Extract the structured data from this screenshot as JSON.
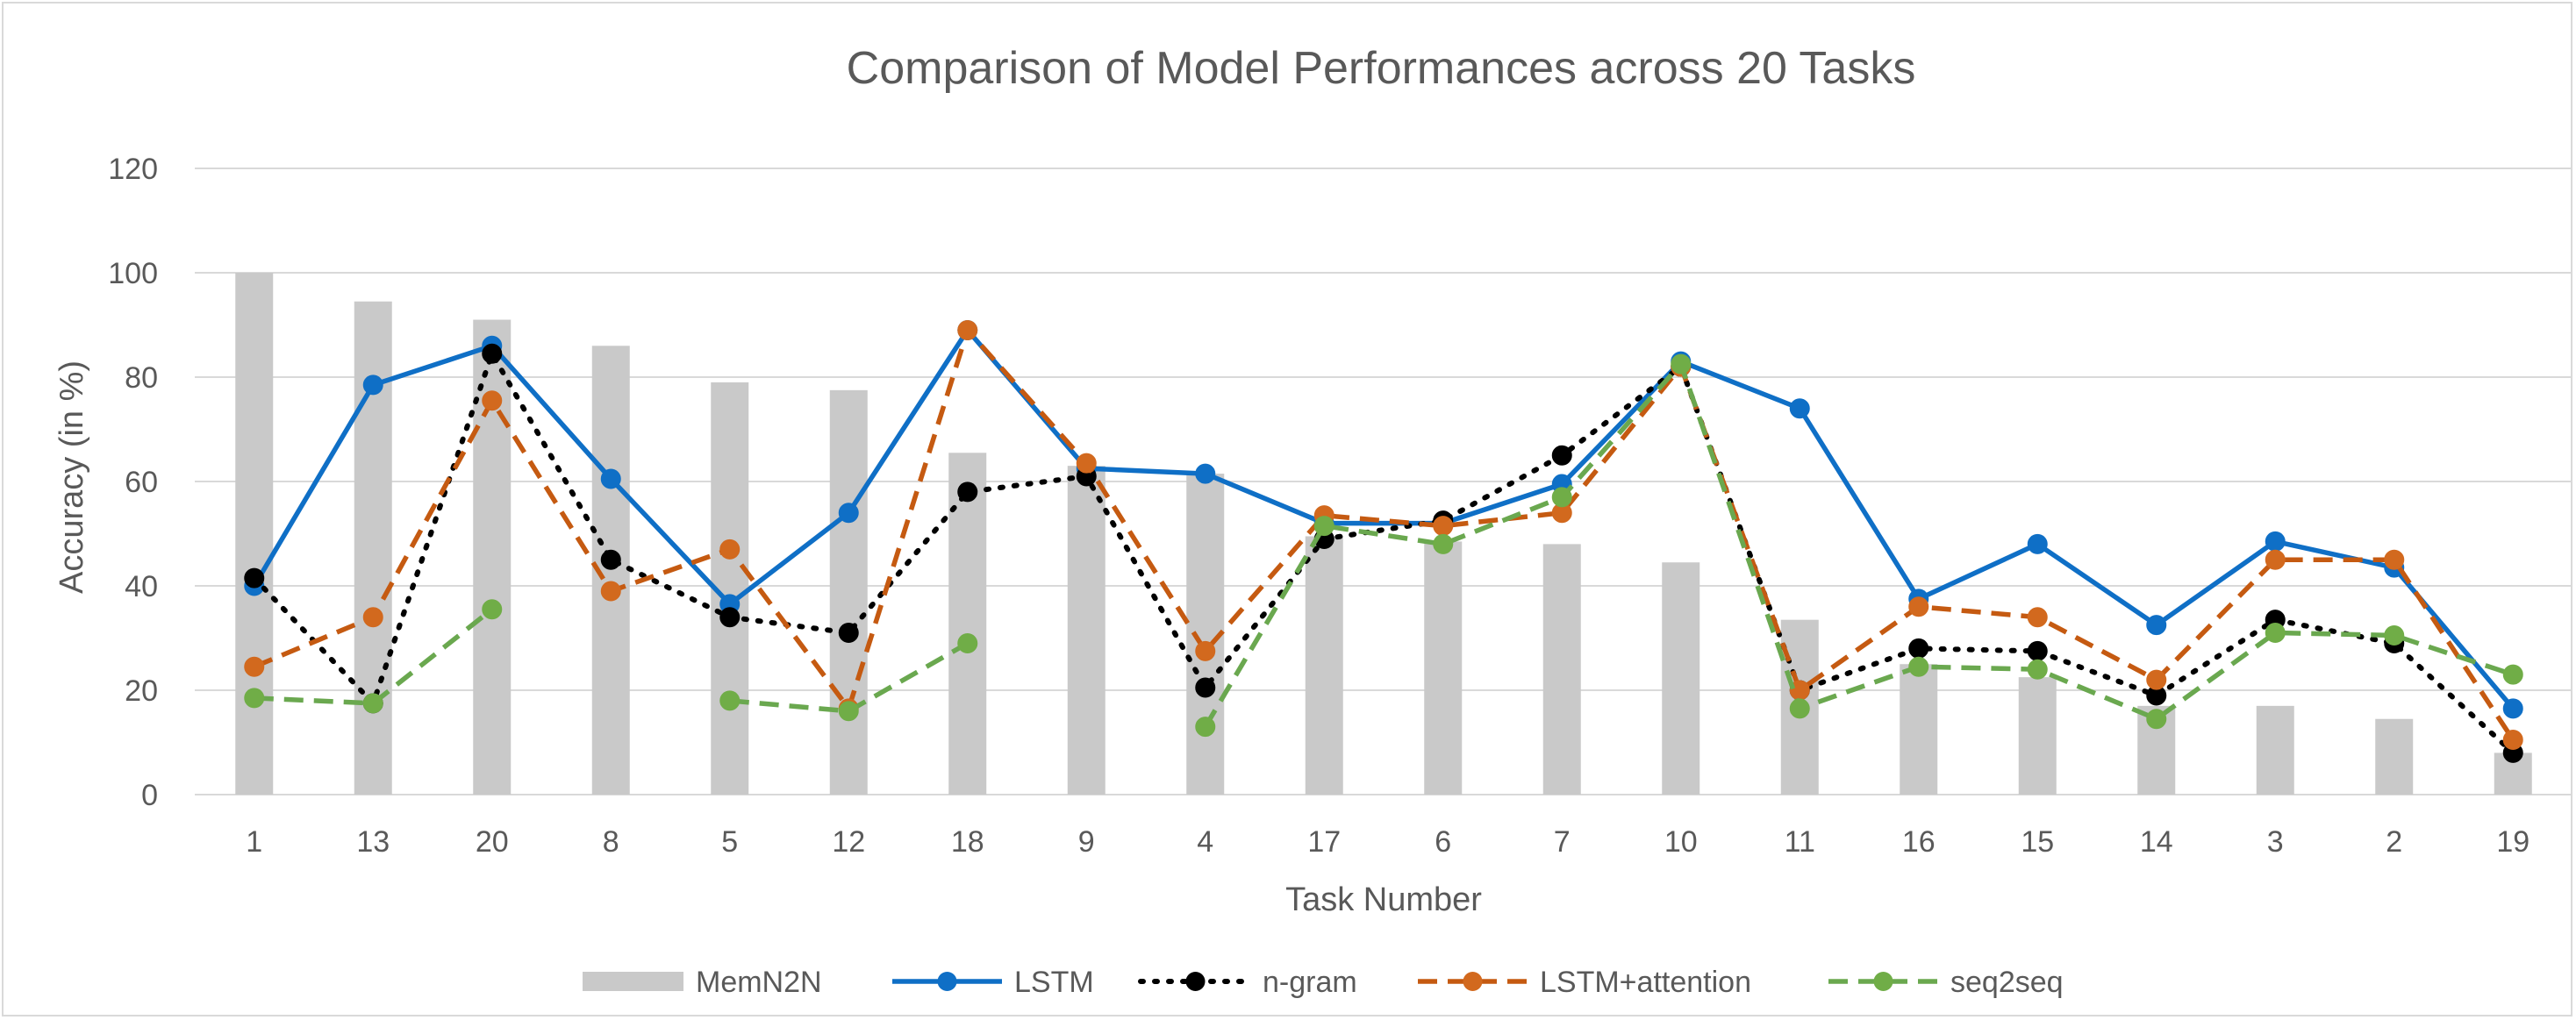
{
  "chart_data": {
    "type": "bar",
    "title": "Comparison of Model Performances across 20 Tasks",
    "xlabel": "Task Number",
    "ylabel": "Accuracy (in %)",
    "ylim": [
      0,
      120
    ],
    "yticks": [
      0,
      20,
      40,
      60,
      80,
      100,
      120
    ],
    "grid": true,
    "legend_position": "bottom",
    "categories": [
      "1",
      "13",
      "20",
      "8",
      "5",
      "12",
      "18",
      "9",
      "4",
      "17",
      "6",
      "7",
      "10",
      "11",
      "16",
      "15",
      "14",
      "3",
      "2",
      "19"
    ],
    "series": [
      {
        "name": "MemN2N",
        "type": "bar",
        "color": "#c9c9c9",
        "values": [
          100,
          94.5,
          91,
          86,
          79,
          77.5,
          65.5,
          63,
          61.5,
          49.5,
          48.5,
          48,
          44.5,
          33.5,
          25,
          22.5,
          17,
          17,
          14.5,
          8
        ]
      },
      {
        "name": "LSTM",
        "type": "line",
        "line_style": "solid",
        "color": "#0f6fc6",
        "marker_color": "#0f6fc6",
        "values": [
          40,
          78.5,
          86,
          60.5,
          36.5,
          54,
          89,
          62.5,
          61.5,
          52,
          52,
          59.5,
          83,
          74,
          37.5,
          48,
          32.5,
          48.5,
          43.5,
          16.5
        ]
      },
      {
        "name": "n-gram",
        "type": "line",
        "line_style": "dotted",
        "color": "#000000",
        "marker_color": "#000000",
        "values": [
          41.5,
          17.5,
          84.5,
          45,
          34,
          31,
          58,
          61,
          20.5,
          49,
          52.5,
          65,
          82,
          20,
          28,
          27.5,
          19,
          33.5,
          29,
          8
        ]
      },
      {
        "name": "LSTM+attention",
        "type": "line",
        "line_style": "dashed",
        "color": "#c55a11",
        "marker_color": "#d2691e",
        "values": [
          24.5,
          34,
          75.5,
          39,
          47,
          16.5,
          89,
          63.5,
          27.5,
          53.5,
          51.5,
          54,
          82,
          20,
          36,
          34,
          22,
          45,
          45,
          10.5
        ]
      },
      {
        "name": "seq2seq",
        "type": "line",
        "line_style": "dashed",
        "color": "#6aa84f",
        "marker_color": "#70ad47",
        "values": [
          18.5,
          17.5,
          35.5,
          null,
          18,
          16,
          29,
          null,
          13,
          51.5,
          48,
          57,
          82.5,
          16.5,
          24.5,
          24,
          14.5,
          31,
          30.5,
          23
        ]
      }
    ]
  }
}
